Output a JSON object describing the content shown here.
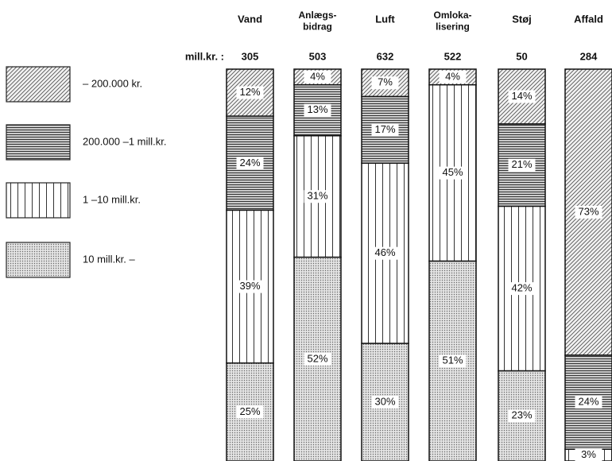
{
  "chart_data": {
    "type": "stacked_bar_percent",
    "categories": [
      "Vand",
      "Anlægs-\nbidrag",
      "Luft",
      "Omloka-\nlisering",
      "Støj",
      "Affald"
    ],
    "totals_label": "mill.kr. :",
    "totals": [
      305,
      503,
      632,
      522,
      50,
      284
    ],
    "series": [
      {
        "name": "– 200.000 kr.",
        "pattern": "diagonal",
        "color": "#555555",
        "values": [
          12,
          4,
          7,
          4,
          14,
          73
        ],
        "value_labels": [
          "12%",
          "4%",
          "7%",
          "4%",
          "14%",
          "73%"
        ]
      },
      {
        "name": "200.000 –1 mill.kr.",
        "pattern": "horizontal",
        "color": "#333333",
        "values": [
          24,
          13,
          17,
          0,
          21,
          24
        ],
        "value_labels": [
          "24%",
          "13%",
          "17%",
          null,
          "21%",
          "24%"
        ]
      },
      {
        "name": "1 –10 mill.kr.",
        "pattern": "vertical",
        "color": "#333333",
        "values": [
          39,
          31,
          46,
          45,
          42,
          3
        ],
        "value_labels": [
          "39%",
          "31%",
          "46%",
          "45%",
          "42%",
          "3%"
        ]
      },
      {
        "name": "10 mill.kr. –",
        "pattern": "dots",
        "color": "#666666",
        "values": [
          25,
          52,
          30,
          51,
          23,
          0
        ],
        "value_labels": [
          "25%",
          "52%",
          "30%",
          "51%",
          "23%",
          null
        ]
      }
    ]
  }
}
